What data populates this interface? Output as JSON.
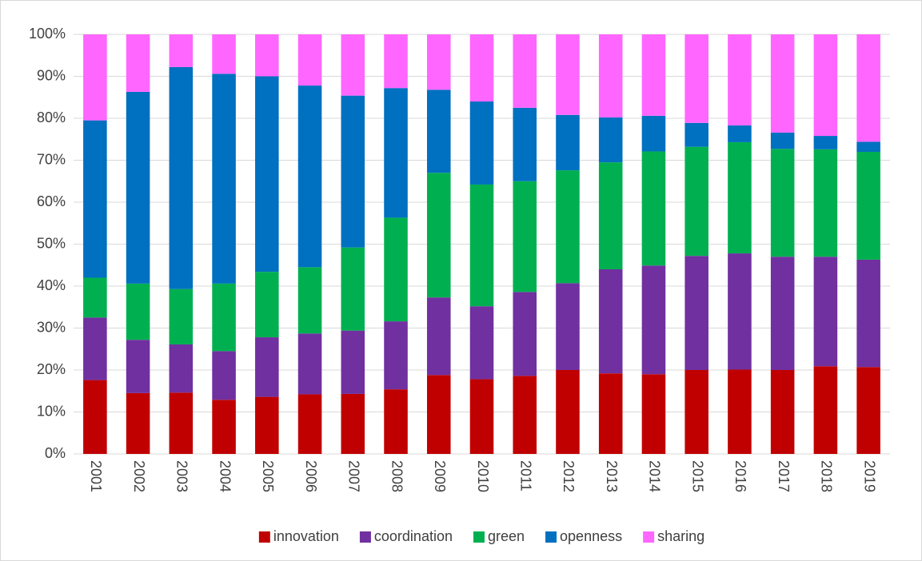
{
  "chart_data": {
    "type": "stacked_bar_100",
    "categories": [
      "2001",
      "2002",
      "2003",
      "2004",
      "2005",
      "2006",
      "2007",
      "2008",
      "2009",
      "2010",
      "2011",
      "2012",
      "2013",
      "2014",
      "2015",
      "2016",
      "2017",
      "2018",
      "2019"
    ],
    "series": [
      {
        "name": "innovation",
        "color": "#c00000",
        "values": [
          17.6,
          14.5,
          14.6,
          12.9,
          13.6,
          14.2,
          14.3,
          15.4,
          18.8,
          17.8,
          18.6,
          20.0,
          19.2,
          19.0,
          20.0,
          20.1,
          20.0,
          20.9,
          20.7
        ]
      },
      {
        "name": "coordination",
        "color": "#7030a0",
        "values": [
          14.9,
          12.7,
          11.5,
          11.6,
          14.2,
          14.5,
          15.1,
          16.2,
          18.5,
          17.4,
          20.0,
          20.7,
          24.8,
          25.9,
          27.2,
          27.7,
          27.0,
          26.1,
          25.6
        ]
      },
      {
        "name": "green",
        "color": "#00b050",
        "values": [
          9.5,
          13.4,
          13.2,
          16.1,
          15.6,
          15.8,
          19.8,
          24.7,
          29.7,
          29.0,
          26.4,
          26.9,
          25.5,
          27.2,
          26.0,
          26.5,
          25.7,
          25.6,
          25.7
        ]
      },
      {
        "name": "openness",
        "color": "#0070c0",
        "values": [
          37.5,
          45.7,
          52.9,
          50.0,
          46.6,
          43.3,
          36.2,
          30.9,
          19.8,
          19.8,
          17.5,
          13.2,
          10.7,
          8.5,
          5.7,
          4.0,
          3.9,
          3.2,
          2.4
        ]
      },
      {
        "name": "sharing",
        "color": "#ff66ff",
        "values": [
          20.5,
          13.7,
          7.8,
          9.4,
          10.0,
          12.2,
          14.6,
          12.8,
          13.2,
          16.0,
          17.5,
          19.2,
          19.8,
          19.4,
          21.1,
          21.7,
          23.4,
          24.2,
          25.6
        ]
      }
    ],
    "ylim": [
      0,
      100
    ],
    "yticks": [
      {
        "value": 0,
        "label": "0%"
      },
      {
        "value": 10,
        "label": "10%"
      },
      {
        "value": 20,
        "label": "20%"
      },
      {
        "value": 30,
        "label": "30%"
      },
      {
        "value": 40,
        "label": "40%"
      },
      {
        "value": 50,
        "label": "50%"
      },
      {
        "value": 60,
        "label": "60%"
      },
      {
        "value": 70,
        "label": "70%"
      },
      {
        "value": 80,
        "label": "80%"
      },
      {
        "value": 90,
        "label": "90%"
      },
      {
        "value": 100,
        "label": "100%"
      }
    ],
    "grid": true,
    "legend": "bottom"
  }
}
